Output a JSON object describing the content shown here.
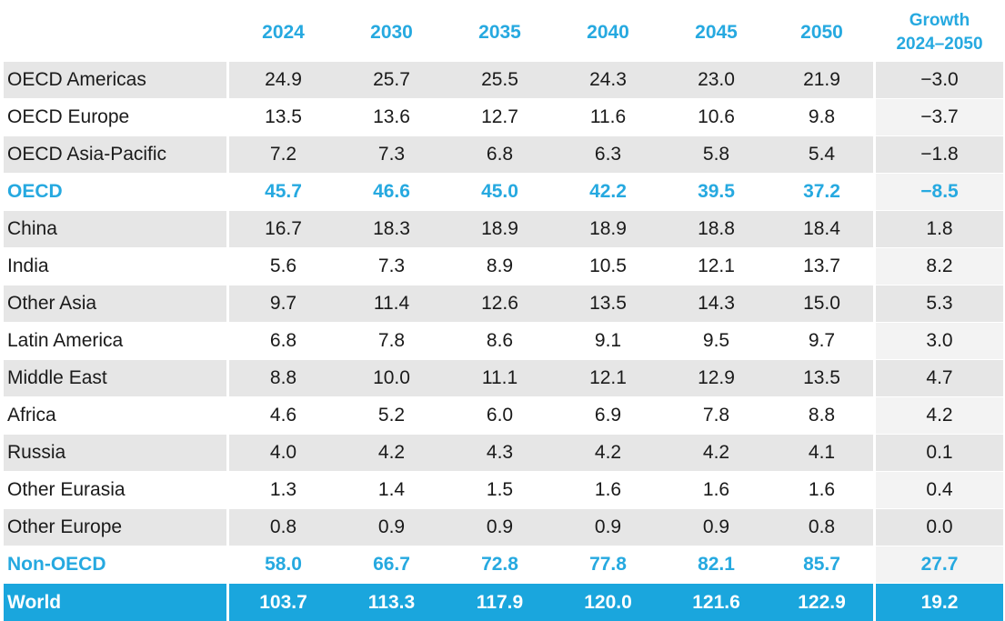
{
  "table": {
    "header": {
      "label": "",
      "years": [
        "2024",
        "2030",
        "2035",
        "2040",
        "2045",
        "2050"
      ],
      "growth_line1": "Growth",
      "growth_line2": "2024–2050"
    },
    "rows": [
      {
        "label": "OECD Americas",
        "values": [
          "24.9",
          "25.7",
          "25.5",
          "24.3",
          "23.0",
          "21.9"
        ],
        "growth": "−3.0"
      },
      {
        "label": "OECD Europe",
        "values": [
          "13.5",
          "13.6",
          "12.7",
          "11.6",
          "10.6",
          "9.8"
        ],
        "growth": "−3.7"
      },
      {
        "label": "OECD Asia-Pacific",
        "values": [
          "7.2",
          "7.3",
          "6.8",
          "6.3",
          "5.8",
          "5.4"
        ],
        "growth": "−1.8"
      },
      {
        "label": "OECD",
        "values": [
          "45.7",
          "46.6",
          "45.0",
          "42.2",
          "39.5",
          "37.2"
        ],
        "growth": "−8.5"
      },
      {
        "label": "China",
        "values": [
          "16.7",
          "18.3",
          "18.9",
          "18.9",
          "18.8",
          "18.4"
        ],
        "growth": "1.8"
      },
      {
        "label": "India",
        "values": [
          "5.6",
          "7.3",
          "8.9",
          "10.5",
          "12.1",
          "13.7"
        ],
        "growth": "8.2"
      },
      {
        "label": "Other Asia",
        "values": [
          "9.7",
          "11.4",
          "12.6",
          "13.5",
          "14.3",
          "15.0"
        ],
        "growth": "5.3"
      },
      {
        "label": "Latin America",
        "values": [
          "6.8",
          "7.8",
          "8.6",
          "9.1",
          "9.5",
          "9.7"
        ],
        "growth": "3.0"
      },
      {
        "label": "Middle East",
        "values": [
          "8.8",
          "10.0",
          "11.1",
          "12.1",
          "12.9",
          "13.5"
        ],
        "growth": "4.7"
      },
      {
        "label": "Africa",
        "values": [
          "4.6",
          "5.2",
          "6.0",
          "6.9",
          "7.8",
          "8.8"
        ],
        "growth": "4.2"
      },
      {
        "label": "Russia",
        "values": [
          "4.0",
          "4.2",
          "4.3",
          "4.2",
          "4.2",
          "4.1"
        ],
        "growth": "0.1"
      },
      {
        "label": "Other Eurasia",
        "values": [
          "1.3",
          "1.4",
          "1.5",
          "1.6",
          "1.6",
          "1.6"
        ],
        "growth": "0.4"
      },
      {
        "label": "Other Europe",
        "values": [
          "0.8",
          "0.9",
          "0.9",
          "0.9",
          "0.9",
          "0.8"
        ],
        "growth": "0.0"
      },
      {
        "label": "Non-OECD",
        "values": [
          "58.0",
          "66.7",
          "72.8",
          "77.8",
          "82.1",
          "85.7"
        ],
        "growth": "27.7"
      },
      {
        "label": "World",
        "values": [
          "103.7",
          "113.3",
          "117.9",
          "120.0",
          "121.6",
          "122.9"
        ],
        "growth": "19.2"
      }
    ]
  },
  "colors": {
    "accent": "#26a9e0",
    "total_bg": "#1aa6dd",
    "shade_bg": "#e6e6e6"
  }
}
